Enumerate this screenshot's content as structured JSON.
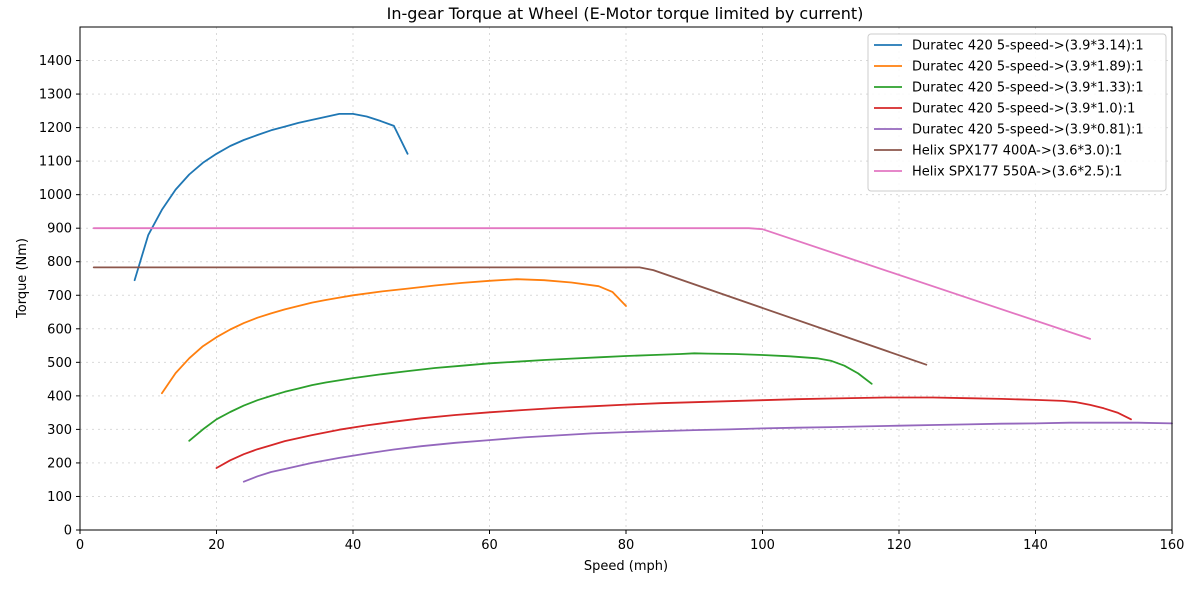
{
  "chart_data": {
    "type": "line",
    "title": "In-gear Torque at Wheel (E-Motor torque limited by current)",
    "xlabel": "Speed (mph)",
    "ylabel": "Torque (Nm)",
    "xlim": [
      0,
      160
    ],
    "ylim": [
      0,
      1500
    ],
    "xticks": [
      0,
      20,
      40,
      60,
      80,
      100,
      120,
      140,
      160
    ],
    "yticks": [
      0,
      100,
      200,
      300,
      400,
      500,
      600,
      700,
      800,
      900,
      1000,
      1100,
      1200,
      1300,
      1400
    ],
    "grid": true,
    "legend_position": "top-right",
    "series": [
      {
        "name": "Duratec 420 5-speed->(3.9*3.14):1",
        "color": "#1f77b4",
        "points": [
          [
            8,
            745
          ],
          [
            10,
            880
          ],
          [
            12,
            955
          ],
          [
            14,
            1015
          ],
          [
            16,
            1060
          ],
          [
            18,
            1095
          ],
          [
            20,
            1122
          ],
          [
            22,
            1145
          ],
          [
            24,
            1163
          ],
          [
            26,
            1178
          ],
          [
            28,
            1192
          ],
          [
            30,
            1203
          ],
          [
            32,
            1214
          ],
          [
            34,
            1223
          ],
          [
            36,
            1232
          ],
          [
            38,
            1241
          ],
          [
            40,
            1241
          ],
          [
            42,
            1233
          ],
          [
            44,
            1220
          ],
          [
            46,
            1205
          ],
          [
            48,
            1122
          ]
        ]
      },
      {
        "name": "Duratec 420 5-speed->(3.9*1.89):1",
        "color": "#ff7f0e",
        "points": [
          [
            12,
            408
          ],
          [
            14,
            468
          ],
          [
            16,
            512
          ],
          [
            18,
            548
          ],
          [
            20,
            575
          ],
          [
            22,
            598
          ],
          [
            24,
            617
          ],
          [
            26,
            633
          ],
          [
            28,
            646
          ],
          [
            30,
            658
          ],
          [
            32,
            668
          ],
          [
            34,
            678
          ],
          [
            36,
            686
          ],
          [
            38,
            693
          ],
          [
            40,
            700
          ],
          [
            44,
            711
          ],
          [
            48,
            720
          ],
          [
            52,
            729
          ],
          [
            56,
            737
          ],
          [
            60,
            743
          ],
          [
            64,
            748
          ],
          [
            68,
            745
          ],
          [
            72,
            738
          ],
          [
            76,
            727
          ],
          [
            78,
            710
          ],
          [
            80,
            668
          ]
        ]
      },
      {
        "name": "Duratec 420 5-speed->(3.9*1.33):1",
        "color": "#2ca02c",
        "points": [
          [
            16,
            266
          ],
          [
            18,
            300
          ],
          [
            20,
            330
          ],
          [
            22,
            352
          ],
          [
            24,
            371
          ],
          [
            26,
            387
          ],
          [
            28,
            400
          ],
          [
            30,
            412
          ],
          [
            32,
            422
          ],
          [
            34,
            432
          ],
          [
            36,
            440
          ],
          [
            40,
            453
          ],
          [
            44,
            464
          ],
          [
            48,
            474
          ],
          [
            52,
            483
          ],
          [
            56,
            490
          ],
          [
            60,
            497
          ],
          [
            64,
            502
          ],
          [
            68,
            507
          ],
          [
            72,
            511
          ],
          [
            76,
            515
          ],
          [
            80,
            519
          ],
          [
            84,
            522
          ],
          [
            88,
            525
          ],
          [
            90,
            527
          ],
          [
            92,
            526
          ],
          [
            96,
            525
          ],
          [
            100,
            522
          ],
          [
            104,
            518
          ],
          [
            108,
            512
          ],
          [
            110,
            505
          ],
          [
            112,
            490
          ],
          [
            114,
            467
          ],
          [
            116,
            436
          ]
        ]
      },
      {
        "name": "Duratec 420 5-speed->(3.9*1.0):1",
        "color": "#d62728",
        "points": [
          [
            20,
            185
          ],
          [
            22,
            208
          ],
          [
            24,
            226
          ],
          [
            26,
            241
          ],
          [
            28,
            253
          ],
          [
            30,
            265
          ],
          [
            34,
            283
          ],
          [
            38,
            299
          ],
          [
            42,
            312
          ],
          [
            46,
            323
          ],
          [
            50,
            333
          ],
          [
            55,
            343
          ],
          [
            60,
            351
          ],
          [
            65,
            358
          ],
          [
            70,
            364
          ],
          [
            75,
            369
          ],
          [
            80,
            374
          ],
          [
            85,
            378
          ],
          [
            90,
            381
          ],
          [
            95,
            384
          ],
          [
            100,
            387
          ],
          [
            105,
            390
          ],
          [
            110,
            392
          ],
          [
            115,
            394
          ],
          [
            118,
            395
          ],
          [
            125,
            395
          ],
          [
            130,
            393
          ],
          [
            135,
            391
          ],
          [
            140,
            388
          ],
          [
            144,
            385
          ],
          [
            146,
            381
          ],
          [
            148,
            373
          ],
          [
            150,
            363
          ],
          [
            152,
            350
          ],
          [
            154,
            330
          ]
        ]
      },
      {
        "name": "Duratec 420 5-speed->(3.9*0.81):1",
        "color": "#9467bd",
        "points": [
          [
            24,
            144
          ],
          [
            26,
            160
          ],
          [
            28,
            173
          ],
          [
            30,
            182
          ],
          [
            34,
            200
          ],
          [
            38,
            215
          ],
          [
            42,
            228
          ],
          [
            46,
            240
          ],
          [
            50,
            250
          ],
          [
            55,
            260
          ],
          [
            60,
            268
          ],
          [
            65,
            276
          ],
          [
            70,
            282
          ],
          [
            75,
            288
          ],
          [
            80,
            292
          ],
          [
            85,
            295
          ],
          [
            90,
            298
          ],
          [
            95,
            300
          ],
          [
            100,
            303
          ],
          [
            105,
            305
          ],
          [
            110,
            307
          ],
          [
            115,
            309
          ],
          [
            120,
            311
          ],
          [
            125,
            313
          ],
          [
            130,
            315
          ],
          [
            135,
            317
          ],
          [
            140,
            318
          ],
          [
            145,
            320
          ],
          [
            150,
            320
          ],
          [
            155,
            320
          ],
          [
            160,
            318
          ]
        ]
      },
      {
        "name": "Helix SPX177 400A->(3.6*3.0):1",
        "color": "#8c564b",
        "points": [
          [
            2,
            783
          ],
          [
            82,
            783
          ],
          [
            84,
            775
          ],
          [
            124,
            493
          ]
        ]
      },
      {
        "name": "Helix SPX177 550A->(3.6*2.5):1",
        "color": "#e377c2",
        "points": [
          [
            2,
            900
          ],
          [
            98,
            900
          ],
          [
            100,
            897
          ],
          [
            148,
            570
          ]
        ]
      }
    ]
  }
}
